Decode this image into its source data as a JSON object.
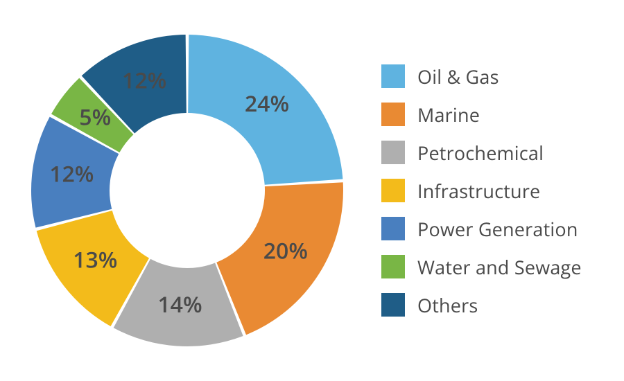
{
  "chart": {
    "type": "donut",
    "outer_radius": 225,
    "inner_radius": 112,
    "gap_deg": 1.2,
    "start_angle_deg": -90,
    "label_radius": 168,
    "background_color": "#ffffff",
    "label_color": "#4a4a4a",
    "label_fontsize": 32,
    "label_fontweight": 600,
    "segments": [
      {
        "name": "Oil & Gas",
        "value": 24,
        "label": "24%",
        "color": "#5fb3e0"
      },
      {
        "name": "Marine",
        "value": 20,
        "label": "20%",
        "color": "#e98a33"
      },
      {
        "name": "Petrochemical",
        "value": 14,
        "label": "14%",
        "color": "#afafaf"
      },
      {
        "name": "Infrastructure",
        "value": 13,
        "label": "13%",
        "color": "#f3bb1b"
      },
      {
        "name": "Power Generation",
        "value": 12,
        "label": "12%",
        "color": "#497fbf"
      },
      {
        "name": "Water and Sewage",
        "value": 5,
        "label": "5%",
        "color": "#79b645"
      },
      {
        "name": "Others",
        "value": 12,
        "label": "12%",
        "color": "#1f5d87"
      }
    ]
  },
  "legend": {
    "swatch_size": 34,
    "label_fontsize": 27,
    "label_color": "#4a4a4a",
    "items": [
      {
        "label": "Oil & Gas",
        "color": "#5fb3e0"
      },
      {
        "label": "Marine",
        "color": "#e98a33"
      },
      {
        "label": "Petrochemical",
        "color": "#afafaf"
      },
      {
        "label": "Infrastructure",
        "color": "#f3bb1b"
      },
      {
        "label": "Power Generation",
        "color": "#497fbf"
      },
      {
        "label": "Water and Sewage",
        "color": "#79b645"
      },
      {
        "label": "Others",
        "color": "#1f5d87"
      }
    ]
  }
}
